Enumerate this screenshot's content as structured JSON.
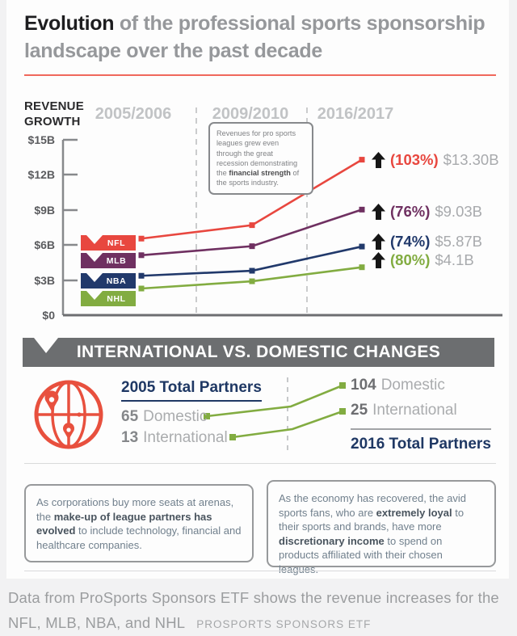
{
  "page": {
    "title_bold": "Evolution",
    "title_rest": " of the professional sports sponsorship landscape over the past decade"
  },
  "chart": {
    "axis_title_line1": "REVENUE",
    "axis_title_line2": "GROWTH",
    "periods": [
      "2005/2006",
      "2009/2010",
      "2016/2017"
    ],
    "y_tick_labels": [
      "$15B",
      "$12B",
      "$9B",
      "$6B",
      "$3B",
      "$0"
    ],
    "y_tick_values": [
      15,
      12,
      9,
      6,
      3,
      0
    ],
    "note_segments": [
      {
        "t": "Revenues for pro sports leagues grew even through the great recession demonstrating the "
      },
      {
        "t": "financial strength",
        "b": true
      },
      {
        "t": " of the sports industry."
      }
    ]
  },
  "chart_data": [
    {
      "type": "line",
      "title": "Revenue growth of pro sports leagues",
      "x": [
        "2005/2006",
        "2009/2010",
        "2016/2017"
      ],
      "ylabel": "REVENUE GROWTH",
      "ylim": [
        0,
        15
      ],
      "yticks": [
        "$0",
        "$3B",
        "$6B",
        "$9B",
        "$12B",
        "$15B"
      ],
      "grid": false,
      "legend_position": "left-flags",
      "series": [
        {
          "name": "NFL",
          "color": "#e8473f",
          "values_billion": [
            6.55,
            7.7,
            13.3
          ],
          "growth_label": "(103%)",
          "growth_pct": 103,
          "final_label": "$13.30B"
        },
        {
          "name": "MLB",
          "color": "#6f3061",
          "values_billion": [
            5.13,
            5.9,
            9.03
          ],
          "growth_label": "(76%)",
          "growth_pct": 76,
          "final_label": "$9.03B"
        },
        {
          "name": "NBA",
          "color": "#21396b",
          "values_billion": [
            3.37,
            3.8,
            5.87
          ],
          "growth_label": "(74%)",
          "growth_pct": 74,
          "final_label": "$5.87B"
        },
        {
          "name": "NHL",
          "color": "#82ac41",
          "values_billion": [
            2.28,
            2.9,
            4.1
          ],
          "growth_label": "(80%)",
          "growth_pct": 80,
          "final_label": "$4.1B"
        }
      ]
    },
    {
      "type": "line",
      "title": "International vs. Domestic changes",
      "x": [
        "2005",
        "2016"
      ],
      "series": [
        {
          "name": "Domestic",
          "color": "#82ac41",
          "values": [
            65,
            104
          ]
        },
        {
          "name": "International",
          "color": "#82ac41",
          "values": [
            13,
            25
          ]
        }
      ]
    }
  ],
  "banner": {
    "title": "INTERNATIONAL VS. DOMESTIC CHANGES"
  },
  "partners": {
    "left_title": "2005 Total Partners",
    "left": [
      {
        "num": "65",
        "label": "Domestic"
      },
      {
        "num": "13",
        "label": "International"
      }
    ],
    "right": [
      {
        "num": "104",
        "label": "Domestic"
      },
      {
        "num": "25",
        "label": "International"
      }
    ],
    "right_title": "2016 Total Partners"
  },
  "callouts": {
    "left_segments": [
      {
        "t": "As corporations buy more seats at arenas, the "
      },
      {
        "t": "make-up of league partners has evolved",
        "b": true
      },
      {
        "t": " to include technology, financial and healthcare companies."
      }
    ],
    "right_segments": [
      {
        "t": "As the economy has recovered, the avid sports fans, who are "
      },
      {
        "t": "extremely loyal",
        "b": true
      },
      {
        "t": " to their sports and brands, have more "
      },
      {
        "t": "discretionary income",
        "b": true
      },
      {
        "t": " to spend on products affiliated with their chosen leagues."
      }
    ]
  },
  "caption": {
    "line1": "Data from ProSports Sponsors ETF shows the revenue increases for the",
    "line2": "NFL, MLB, NBA, and NHL",
    "source": "PROSPORTS SPONSORS ETF"
  },
  "icons": {
    "growth_arrow": "black-up-arrow",
    "globe": "globe-with-location-pins"
  },
  "colors": {
    "nfl_red": "#e8473f",
    "mlb_purple": "#6f3061",
    "nba_navy": "#21396b",
    "nhl_green": "#82ac41",
    "banner_gray": "#6c6e70",
    "navy_text": "#1f3864",
    "title_rule_red": "#f0685c",
    "globe_red": "#e8503e"
  }
}
